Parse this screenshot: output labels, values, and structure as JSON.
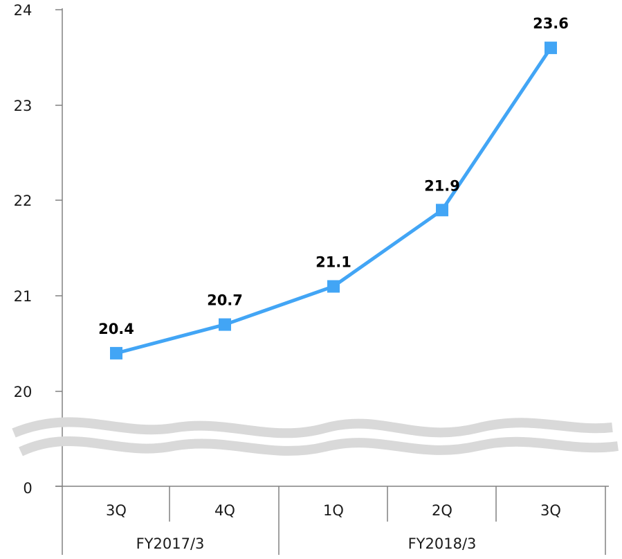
{
  "chart_data": {
    "type": "line",
    "title": "",
    "xlabel": "",
    "ylabel": "",
    "categories": [
      "3Q",
      "4Q",
      "1Q",
      "2Q",
      "3Q"
    ],
    "groups": [
      {
        "label": "FY2017/3",
        "categories": [
          "3Q",
          "4Q"
        ]
      },
      {
        "label": "FY2018/3",
        "categories": [
          "1Q",
          "2Q",
          "3Q"
        ]
      }
    ],
    "values": [
      20.4,
      20.7,
      21.1,
      21.9,
      23.6
    ],
    "data_labels": [
      "20.4",
      "20.7",
      "21.1",
      "21.9",
      "23.6"
    ],
    "y_axis": {
      "ticks_upper": [
        20,
        21,
        22,
        23,
        24
      ],
      "tick_labels_upper": [
        "20",
        "21",
        "22",
        "23",
        "24"
      ],
      "tick_lower": 0,
      "tick_label_lower": "0",
      "axis_break": true,
      "break_between": [
        0,
        20
      ]
    },
    "ylim": [
      20,
      24
    ],
    "grid": false,
    "legend": "none",
    "marker": "square",
    "colors": {
      "series": "#42A5F5",
      "marker": "#42A5F5",
      "axis": "#808080",
      "break_band": "#D9D9D9"
    }
  }
}
